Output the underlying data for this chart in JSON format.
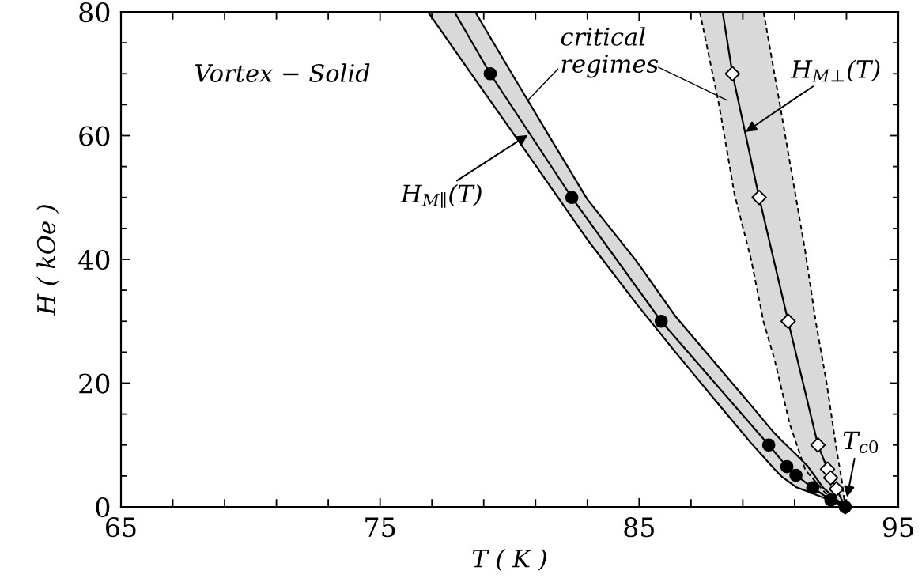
{
  "chart_data": {
    "type": "line",
    "xlabel": "T ( K )",
    "ylabel": "H ( kOe )",
    "xlim": [
      65,
      95
    ],
    "ylim": [
      0,
      80
    ],
    "xticks": [
      65,
      {
        "value": 67,
        "label": null
      },
      {
        "value": 69,
        "label": null
      },
      {
        "value": 71,
        "label": null
      },
      {
        "value": 73,
        "label": null
      },
      75,
      {
        "value": 77,
        "label": null
      },
      {
        "value": 79,
        "label": null
      },
      {
        "value": 81,
        "label": null
      },
      {
        "value": 83,
        "label": null
      },
      85,
      {
        "value": 87,
        "label": null
      },
      {
        "value": 89,
        "label": null
      },
      {
        "value": 91,
        "label": null
      },
      {
        "value": 93,
        "label": null
      },
      95
    ],
    "yticks": [
      0,
      {
        "value": 5,
        "label": null
      },
      {
        "value": 10,
        "label": null
      },
      {
        "value": 15,
        "label": null
      },
      20,
      {
        "value": 25,
        "label": null
      },
      {
        "value": 30,
        "label": null
      },
      {
        "value": 35,
        "label": null
      },
      40,
      {
        "value": 45,
        "label": null
      },
      {
        "value": 50,
        "label": null
      },
      {
        "value": 55,
        "label": null
      },
      60,
      {
        "value": 65,
        "label": null
      },
      {
        "value": 70,
        "label": null
      },
      {
        "value": 75,
        "label": null
      },
      80
    ],
    "series": [
      {
        "x": [
          76.85,
          77.9,
          78.67,
          80,
          81.6,
          83.0,
          84.9,
          86.4,
          88.0,
          89.3,
          90.2,
          90.5,
          91.05,
          91.5,
          92.1,
          92.4,
          92.95
        ],
        "values": [
          80,
          73.7,
          69.1,
          61.2,
          51.6,
          43.2,
          32.8,
          25.0,
          16.9,
          10.4,
          6.2,
          4.9,
          3.2,
          2.5,
          1.5,
          1.0,
          0
        ],
        "lower": [
          80,
          73.7,
          69.1,
          61.2,
          51.6,
          43.2,
          32.8,
          25.0,
          16.9,
          10.4,
          6.2,
          4.9,
          3.2,
          2.5,
          1.5,
          1.0,
          0
        ],
        "upper": [
          80,
          80,
          80,
          70.6,
          59.4,
          49.7,
          39.7,
          30.8,
          22.9,
          16.5,
          12.0,
          10.7,
          8.5,
          6.6,
          3.1,
          2.0,
          0
        ],
        "color": "#000000",
        "line_style": "solid"
      },
      {
        "x": [
          78.67,
          80,
          81.6,
          83.0,
          84.9,
          86.4,
          88.0,
          89.3,
          90.2,
          90.5,
          91.05,
          91.5,
          92.1,
          92.4,
          92.95
        ],
        "values": [
          80,
          70.6,
          59.4,
          49.7,
          39.7,
          30.8,
          22.9,
          16.5,
          12.0,
          10.7,
          8.5,
          6.6,
          3.1,
          2.0,
          0
        ],
        "color": "#000000",
        "line_style": "solid"
      },
      {
        "x": [
          87.34,
          88.09,
          88.68,
          89.33,
          89.8,
          90.22,
          90.44,
          90.81,
          91.03,
          91.41,
          91.82,
          92.24,
          92.59,
          92.83,
          92.95
        ],
        "values": [
          80,
          64.8,
          50.5,
          39.8,
          29.9,
          23.9,
          20.0,
          13.4,
          10.7,
          6.0,
          4.0,
          2.0,
          1.0,
          0.3,
          0
        ],
        "lower": [
          80,
          64.8,
          50.5,
          39.8,
          29.9,
          23.9,
          20.0,
          13.4,
          10.7,
          6.0,
          4.0,
          2.0,
          1.0,
          0.3,
          0
        ],
        "upper": [
          80,
          80,
          80,
          80,
          80,
          70.0,
          64.8,
          55.8,
          50.5,
          41.3,
          29.8,
          19.9,
          10.0,
          4.0,
          0
        ],
        "color": "#000000",
        "line_style": "dashed"
      },
      {
        "x": [
          89.8,
          90.22,
          90.44,
          90.81,
          91.03,
          91.41,
          91.82,
          92.24,
          92.59,
          92.83,
          92.95
        ],
        "values": [
          80,
          70.0,
          64.8,
          55.8,
          50.5,
          41.3,
          29.8,
          19.9,
          10.0,
          4.0,
          0
        ],
        "color": "#000000",
        "line_style": "dashed"
      },
      {
        "x": [
          77.87,
          79.25,
          82.4,
          85.85,
          90.0,
          90.7,
          91.05,
          91.7,
          92.4,
          92.95
        ],
        "values": [
          80,
          70,
          50,
          30,
          10,
          6.5,
          5.1,
          3.1,
          1.1,
          0
        ],
        "color": "#000000",
        "line_style": "solid"
      },
      {
        "x": [
          88.22,
          88.6,
          89.63,
          90.75,
          91.9,
          92.27,
          92.39,
          92.61,
          92.95
        ],
        "values": [
          80,
          70,
          50,
          30,
          10,
          6.1,
          4.7,
          2.9,
          0
        ],
        "color": "#000000",
        "line_style": "solid"
      },
      {
        "type": "scatter",
        "x": [
          88.6,
          89.63,
          90.75,
          91.9,
          92.27,
          92.39,
          92.61,
          92.95
        ],
        "values": [
          70,
          50,
          30,
          10,
          6.1,
          4.7,
          2.9,
          0
        ],
        "color": "#ffffff",
        "marker": "diamond"
      },
      {
        "type": "scatter",
        "x": [
          79.25,
          82.4,
          85.85,
          90.0,
          90.7,
          91.05,
          91.7,
          92.4,
          92.95
        ],
        "values": [
          70,
          50,
          30,
          10,
          6.5,
          5.1,
          3.1,
          1.1,
          0
        ],
        "color": "#000000",
        "marker": "circle"
      }
    ],
    "annotations": [
      "Vortex − Solid",
      {
        "text": "critical\nregimes",
        "x": 80.7,
        "y": 65.7
      },
      {
        "text": "H$_{M∥}$(T)",
        "x": 80.7,
        "y": 60.1
      },
      {
        "text": "H$_{M⊥}$(T)",
        "x": 89.11,
        "y": 60.6
      },
      {
        "text": "T$_{c0}$",
        "x": 92.95,
        "y": 0
      }
    ]
  }
}
